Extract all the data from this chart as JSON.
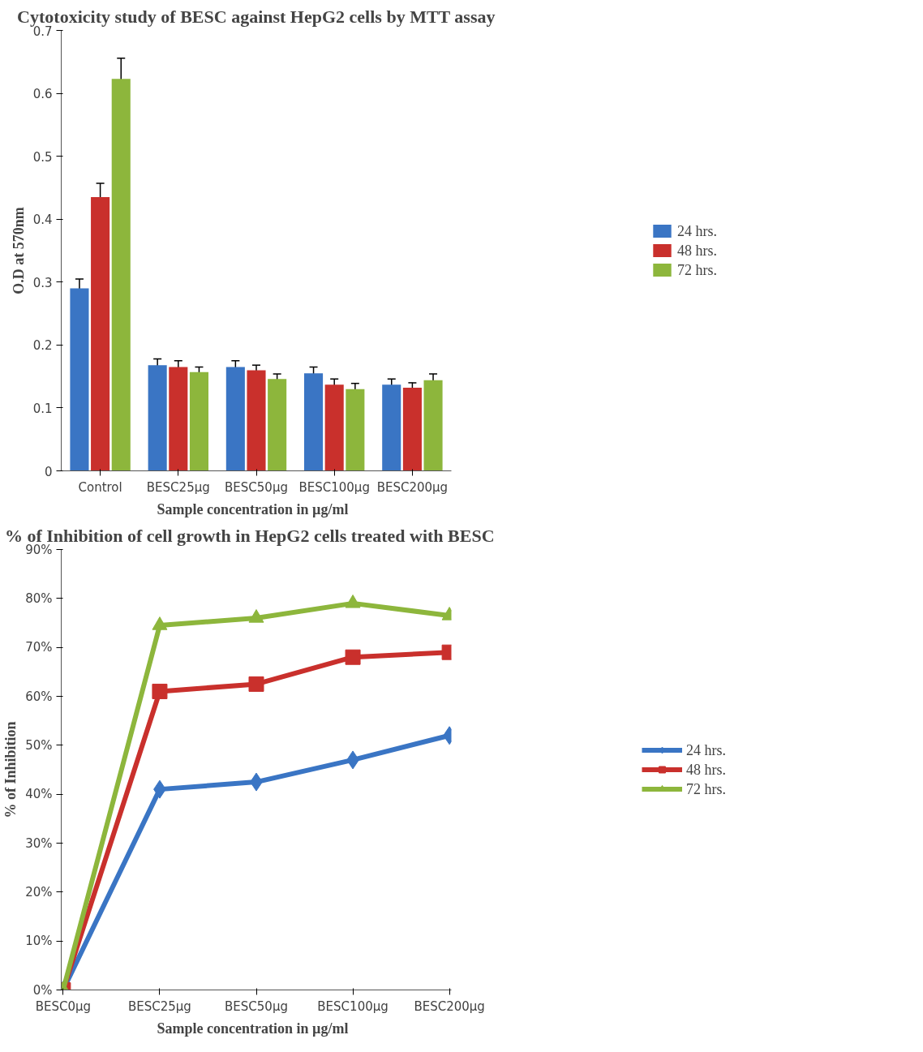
{
  "chart_data": [
    {
      "type": "bar",
      "title": "Cytotoxicity study of BESC against HepG2 cells by MTT assay",
      "xlabel": "Sample  concentration  in µg/ml",
      "ylabel": "O.D at 570nm",
      "categories": [
        "Control",
        "BESC25µg",
        "BESC50µg",
        "BESC100µg",
        "BESC200µg"
      ],
      "series": [
        {
          "name": "24 hrs.",
          "color": "#3a75c4",
          "values": [
            0.29,
            0.168,
            0.165,
            0.155,
            0.137
          ],
          "errors": [
            0.015,
            0.01,
            0.01,
            0.01,
            0.009
          ]
        },
        {
          "name": "48 hrs.",
          "color": "#c9302c",
          "values": [
            0.435,
            0.165,
            0.16,
            0.137,
            0.132
          ],
          "errors": [
            0.022,
            0.01,
            0.008,
            0.009,
            0.008
          ]
        },
        {
          "name": "72 hrs.",
          "color": "#8db63c",
          "values": [
            0.623,
            0.157,
            0.146,
            0.13,
            0.144
          ],
          "errors": [
            0.033,
            0.008,
            0.008,
            0.009,
            0.01
          ]
        }
      ],
      "ylim": [
        0,
        0.7
      ],
      "yticks": [
        0,
        0.1,
        0.2,
        0.3,
        0.4,
        0.5,
        0.6,
        0.7
      ],
      "grid": false,
      "legend": "right"
    },
    {
      "type": "line",
      "title": "% of Inhibition  of cell growth  in HepG2 cells treated with  BESC",
      "xlabel": "Sample  concentration  in µg/ml",
      "ylabel": "% of Inhibition",
      "categories": [
        "BESC0µg",
        "BESC25µg",
        "BESC50µg",
        "BESC100µg",
        "BESC200µg"
      ],
      "series": [
        {
          "name": "24 hrs.",
          "color": "#3a75c4",
          "marker": "diamond",
          "values": [
            0,
            41,
            42.5,
            47,
            52
          ]
        },
        {
          "name": "48 hrs.",
          "color": "#c9302c",
          "marker": "square",
          "values": [
            0,
            61,
            62.5,
            68,
            69
          ]
        },
        {
          "name": "72 hrs.",
          "color": "#8db63c",
          "marker": "triangle",
          "values": [
            0,
            74.5,
            76,
            79,
            76.5
          ]
        }
      ],
      "ylim": [
        0,
        90
      ],
      "yticks": [
        {
          "value": 0,
          "label": "0%"
        },
        {
          "value": 10,
          "label": "10%"
        },
        {
          "value": 20,
          "label": "20%"
        },
        {
          "value": 30,
          "label": "30%"
        },
        {
          "value": 40,
          "label": "40%"
        },
        {
          "value": 50,
          "label": "50%"
        },
        {
          "value": 60,
          "label": "60%"
        },
        {
          "value": 70,
          "label": "70%"
        },
        {
          "value": 80,
          "label": "80%"
        },
        {
          "value": 90,
          "label": "90%"
        }
      ],
      "grid": false,
      "legend": "right",
      "line_style": "solid"
    }
  ]
}
